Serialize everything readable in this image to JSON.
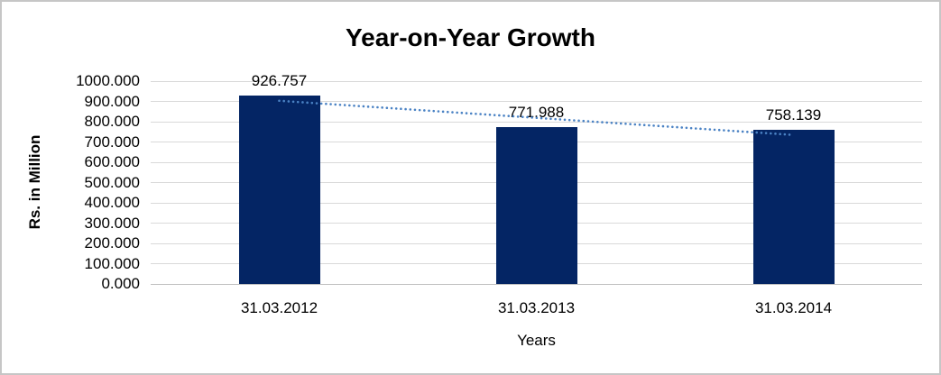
{
  "chart_data": {
    "type": "bar",
    "title": "Year-on-Year Growth",
    "xlabel": "Years",
    "ylabel": "Rs. in Million",
    "categories": [
      "31.03.2012",
      "31.03.2013",
      "31.03.2014"
    ],
    "values": [
      926.757,
      771.988,
      758.139
    ],
    "value_labels": [
      "926.757",
      "771.988",
      "758.139"
    ],
    "ylim": [
      0,
      1000
    ],
    "ytick_labels": [
      "1000.000",
      "900.000",
      "800.000",
      "700.000",
      "600.000",
      "500.000",
      "400.000",
      "300.000",
      "200.000",
      "100.000",
      "0.000"
    ],
    "grid": "horizontal",
    "legend": "none",
    "trendline": {
      "type": "linear",
      "style": "dotted",
      "start_value": 903.3,
      "end_value": 734.7
    },
    "colors": {
      "bar": "#042564",
      "trend": "#4A82C4",
      "gridline": "#D9D9D9",
      "axis_line": "#BFBFBF",
      "text": "#000000",
      "background": "#FFFFFF",
      "border": "#C6C6C6"
    }
  }
}
